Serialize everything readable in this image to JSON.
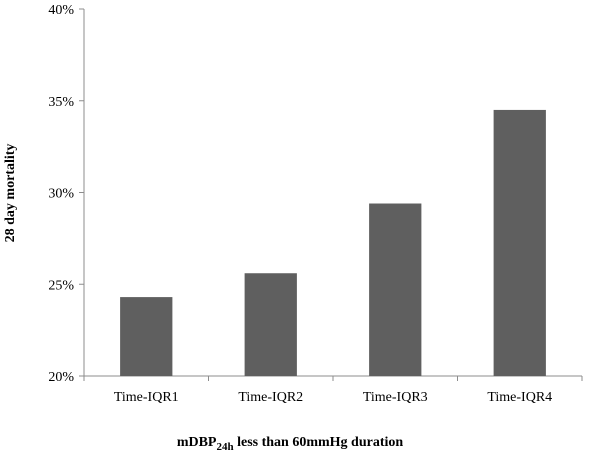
{
  "chart_data": {
    "type": "bar",
    "categories": [
      "Time-IQR1",
      "Time-IQR2",
      "Time-IQR3",
      "Time-IQR4"
    ],
    "values": [
      24.3,
      25.6,
      29.4,
      34.5
    ],
    "ylim": [
      20,
      40
    ],
    "yticks": [
      20,
      25,
      30,
      35,
      40
    ],
    "ytick_labels": [
      "20%",
      "25%",
      "30%",
      "35%",
      "40%"
    ],
    "ylabel": "28 day mortality",
    "xlabel": {
      "prefix": "mDBP",
      "subscript": "24h",
      "suffix": " less than 60mmHg duration"
    },
    "grid": false,
    "legend": "none",
    "bar_color": "#5f5f5f",
    "axis_color": "#8c8c8c"
  }
}
